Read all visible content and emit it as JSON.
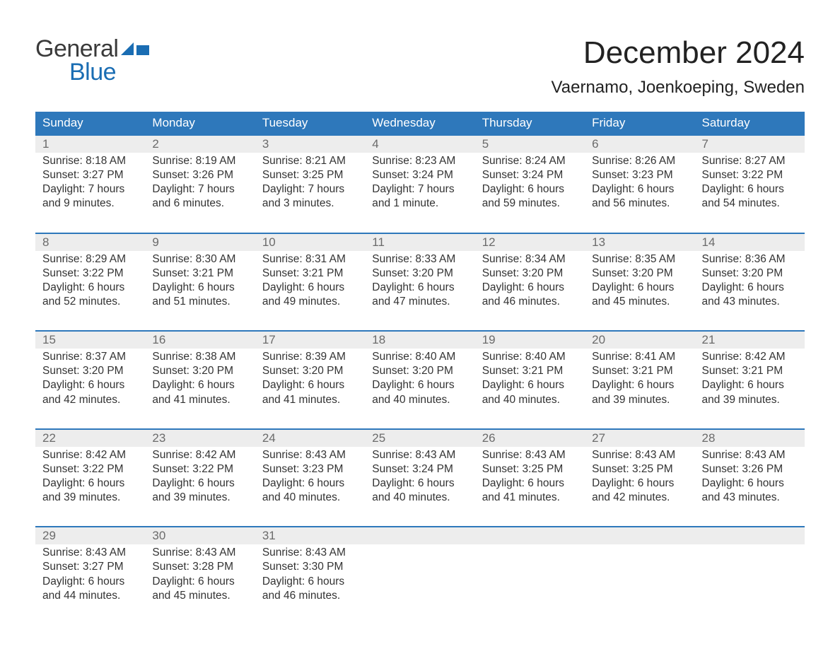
{
  "logo": {
    "word1": "General",
    "word2": "Blue"
  },
  "title": "December 2024",
  "location": "Vaernamo, Joenkoeping, Sweden",
  "colors": {
    "header_bg": "#2e78bb",
    "header_text": "#ffffff",
    "week_border": "#2e78bb",
    "daynum_bg": "#ededed",
    "daynum_text": "#6b6b6b",
    "body_text": "#333333",
    "logo_blue": "#1a6db3",
    "logo_gray": "#3a3a3a"
  },
  "day_headers": [
    "Sunday",
    "Monday",
    "Tuesday",
    "Wednesday",
    "Thursday",
    "Friday",
    "Saturday"
  ],
  "weeks": [
    [
      {
        "n": "1",
        "sunrise": "Sunrise: 8:18 AM",
        "sunset": "Sunset: 3:27 PM",
        "dayl1": "Daylight: 7 hours",
        "dayl2": "and 9 minutes."
      },
      {
        "n": "2",
        "sunrise": "Sunrise: 8:19 AM",
        "sunset": "Sunset: 3:26 PM",
        "dayl1": "Daylight: 7 hours",
        "dayl2": "and 6 minutes."
      },
      {
        "n": "3",
        "sunrise": "Sunrise: 8:21 AM",
        "sunset": "Sunset: 3:25 PM",
        "dayl1": "Daylight: 7 hours",
        "dayl2": "and 3 minutes."
      },
      {
        "n": "4",
        "sunrise": "Sunrise: 8:23 AM",
        "sunset": "Sunset: 3:24 PM",
        "dayl1": "Daylight: 7 hours",
        "dayl2": "and 1 minute."
      },
      {
        "n": "5",
        "sunrise": "Sunrise: 8:24 AM",
        "sunset": "Sunset: 3:24 PM",
        "dayl1": "Daylight: 6 hours",
        "dayl2": "and 59 minutes."
      },
      {
        "n": "6",
        "sunrise": "Sunrise: 8:26 AM",
        "sunset": "Sunset: 3:23 PM",
        "dayl1": "Daylight: 6 hours",
        "dayl2": "and 56 minutes."
      },
      {
        "n": "7",
        "sunrise": "Sunrise: 8:27 AM",
        "sunset": "Sunset: 3:22 PM",
        "dayl1": "Daylight: 6 hours",
        "dayl2": "and 54 minutes."
      }
    ],
    [
      {
        "n": "8",
        "sunrise": "Sunrise: 8:29 AM",
        "sunset": "Sunset: 3:22 PM",
        "dayl1": "Daylight: 6 hours",
        "dayl2": "and 52 minutes."
      },
      {
        "n": "9",
        "sunrise": "Sunrise: 8:30 AM",
        "sunset": "Sunset: 3:21 PM",
        "dayl1": "Daylight: 6 hours",
        "dayl2": "and 51 minutes."
      },
      {
        "n": "10",
        "sunrise": "Sunrise: 8:31 AM",
        "sunset": "Sunset: 3:21 PM",
        "dayl1": "Daylight: 6 hours",
        "dayl2": "and 49 minutes."
      },
      {
        "n": "11",
        "sunrise": "Sunrise: 8:33 AM",
        "sunset": "Sunset: 3:20 PM",
        "dayl1": "Daylight: 6 hours",
        "dayl2": "and 47 minutes."
      },
      {
        "n": "12",
        "sunrise": "Sunrise: 8:34 AM",
        "sunset": "Sunset: 3:20 PM",
        "dayl1": "Daylight: 6 hours",
        "dayl2": "and 46 minutes."
      },
      {
        "n": "13",
        "sunrise": "Sunrise: 8:35 AM",
        "sunset": "Sunset: 3:20 PM",
        "dayl1": "Daylight: 6 hours",
        "dayl2": "and 45 minutes."
      },
      {
        "n": "14",
        "sunrise": "Sunrise: 8:36 AM",
        "sunset": "Sunset: 3:20 PM",
        "dayl1": "Daylight: 6 hours",
        "dayl2": "and 43 minutes."
      }
    ],
    [
      {
        "n": "15",
        "sunrise": "Sunrise: 8:37 AM",
        "sunset": "Sunset: 3:20 PM",
        "dayl1": "Daylight: 6 hours",
        "dayl2": "and 42 minutes."
      },
      {
        "n": "16",
        "sunrise": "Sunrise: 8:38 AM",
        "sunset": "Sunset: 3:20 PM",
        "dayl1": "Daylight: 6 hours",
        "dayl2": "and 41 minutes."
      },
      {
        "n": "17",
        "sunrise": "Sunrise: 8:39 AM",
        "sunset": "Sunset: 3:20 PM",
        "dayl1": "Daylight: 6 hours",
        "dayl2": "and 41 minutes."
      },
      {
        "n": "18",
        "sunrise": "Sunrise: 8:40 AM",
        "sunset": "Sunset: 3:20 PM",
        "dayl1": "Daylight: 6 hours",
        "dayl2": "and 40 minutes."
      },
      {
        "n": "19",
        "sunrise": "Sunrise: 8:40 AM",
        "sunset": "Sunset: 3:21 PM",
        "dayl1": "Daylight: 6 hours",
        "dayl2": "and 40 minutes."
      },
      {
        "n": "20",
        "sunrise": "Sunrise: 8:41 AM",
        "sunset": "Sunset: 3:21 PM",
        "dayl1": "Daylight: 6 hours",
        "dayl2": "and 39 minutes."
      },
      {
        "n": "21",
        "sunrise": "Sunrise: 8:42 AM",
        "sunset": "Sunset: 3:21 PM",
        "dayl1": "Daylight: 6 hours",
        "dayl2": "and 39 minutes."
      }
    ],
    [
      {
        "n": "22",
        "sunrise": "Sunrise: 8:42 AM",
        "sunset": "Sunset: 3:22 PM",
        "dayl1": "Daylight: 6 hours",
        "dayl2": "and 39 minutes."
      },
      {
        "n": "23",
        "sunrise": "Sunrise: 8:42 AM",
        "sunset": "Sunset: 3:22 PM",
        "dayl1": "Daylight: 6 hours",
        "dayl2": "and 39 minutes."
      },
      {
        "n": "24",
        "sunrise": "Sunrise: 8:43 AM",
        "sunset": "Sunset: 3:23 PM",
        "dayl1": "Daylight: 6 hours",
        "dayl2": "and 40 minutes."
      },
      {
        "n": "25",
        "sunrise": "Sunrise: 8:43 AM",
        "sunset": "Sunset: 3:24 PM",
        "dayl1": "Daylight: 6 hours",
        "dayl2": "and 40 minutes."
      },
      {
        "n": "26",
        "sunrise": "Sunrise: 8:43 AM",
        "sunset": "Sunset: 3:25 PM",
        "dayl1": "Daylight: 6 hours",
        "dayl2": "and 41 minutes."
      },
      {
        "n": "27",
        "sunrise": "Sunrise: 8:43 AM",
        "sunset": "Sunset: 3:25 PM",
        "dayl1": "Daylight: 6 hours",
        "dayl2": "and 42 minutes."
      },
      {
        "n": "28",
        "sunrise": "Sunrise: 8:43 AM",
        "sunset": "Sunset: 3:26 PM",
        "dayl1": "Daylight: 6 hours",
        "dayl2": "and 43 minutes."
      }
    ],
    [
      {
        "n": "29",
        "sunrise": "Sunrise: 8:43 AM",
        "sunset": "Sunset: 3:27 PM",
        "dayl1": "Daylight: 6 hours",
        "dayl2": "and 44 minutes."
      },
      {
        "n": "30",
        "sunrise": "Sunrise: 8:43 AM",
        "sunset": "Sunset: 3:28 PM",
        "dayl1": "Daylight: 6 hours",
        "dayl2": "and 45 minutes."
      },
      {
        "n": "31",
        "sunrise": "Sunrise: 8:43 AM",
        "sunset": "Sunset: 3:30 PM",
        "dayl1": "Daylight: 6 hours",
        "dayl2": "and 46 minutes."
      },
      null,
      null,
      null,
      null
    ]
  ]
}
